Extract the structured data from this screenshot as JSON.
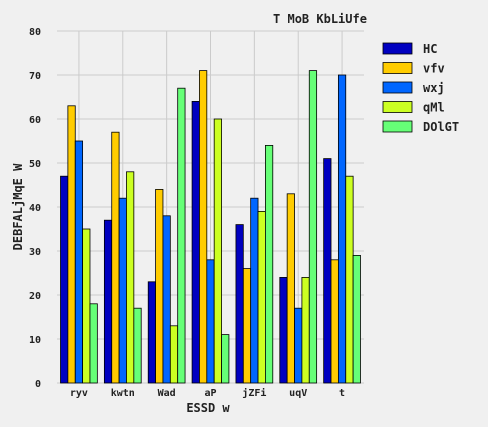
{
  "chart_data": {
    "type": "bar",
    "title": "T MoB KbLiUfe",
    "xlabel": "ESSD w",
    "ylabel": "DEBFALjMqE W",
    "categories": [
      "ryv",
      "kwtn",
      "Wad",
      "aP",
      "jZFi",
      "uqV",
      "t"
    ],
    "ylim": [
      0,
      80
    ],
    "yticks": [
      0,
      10,
      20,
      30,
      40,
      50,
      60,
      70,
      80
    ],
    "grid": true,
    "legend_position": "top-right",
    "series": [
      {
        "name": "HC",
        "color": "#0000c0",
        "values": [
          47,
          37,
          23,
          64,
          36,
          24,
          51
        ]
      },
      {
        "name": "vfv",
        "color": "#ffcc00",
        "values": [
          63,
          57,
          44,
          71,
          26,
          43,
          28
        ]
      },
      {
        "name": "wxj",
        "color": "#0066ff",
        "values": [
          55,
          42,
          38,
          28,
          42,
          17,
          70
        ]
      },
      {
        "name": "qMl",
        "color": "#ccff22",
        "values": [
          35,
          48,
          13,
          60,
          39,
          24,
          47
        ]
      },
      {
        "name": "DOlGT",
        "color": "#66ff77",
        "values": [
          18,
          17,
          67,
          11,
          54,
          71,
          29
        ]
      }
    ]
  }
}
